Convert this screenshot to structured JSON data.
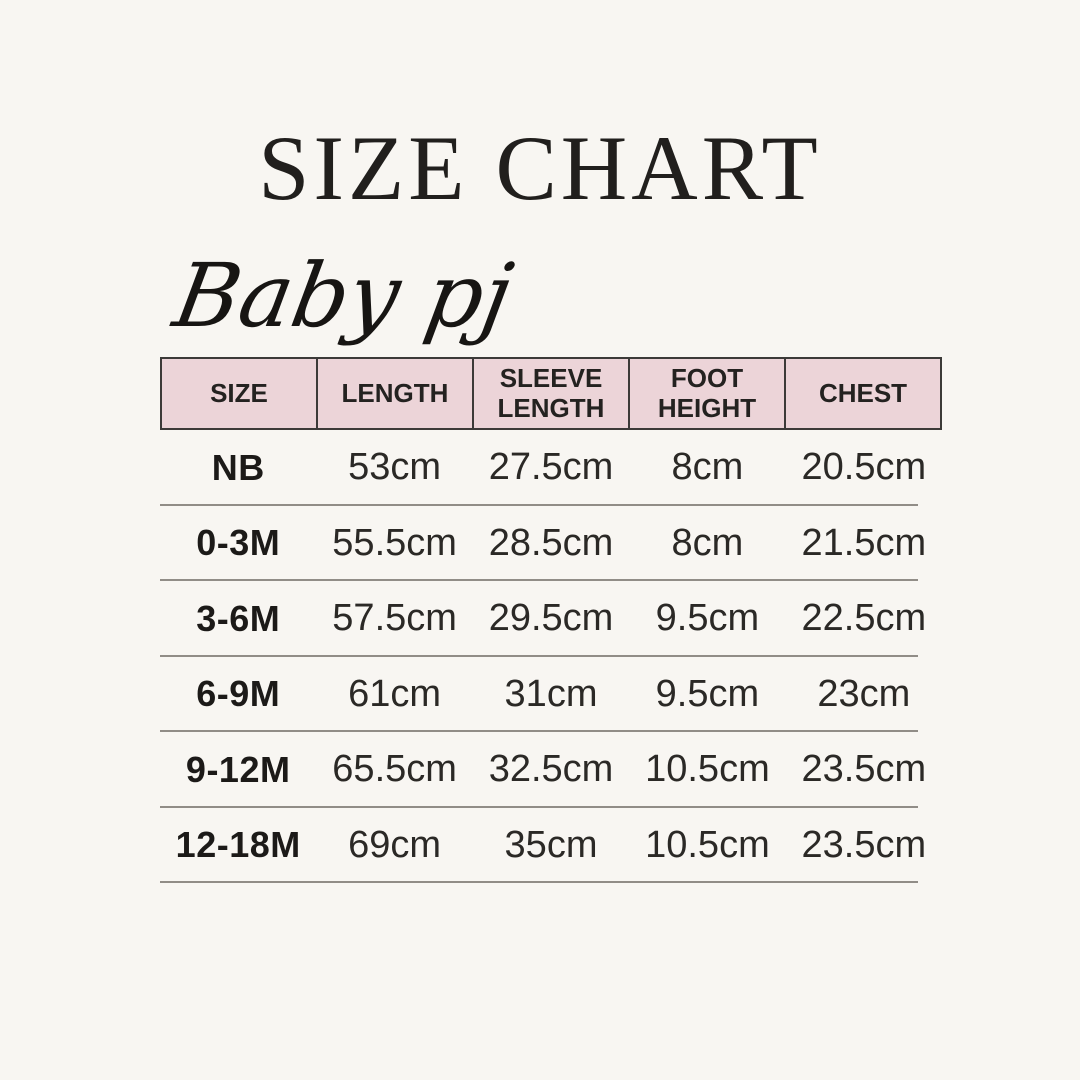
{
  "chart_data": {
    "type": "table",
    "title": "SIZE CHART",
    "subtitle": "Baby pj",
    "columns": [
      "SIZE",
      "LENGTH",
      "SLEEVE LENGTH",
      "FOOT HEIGHT",
      "CHEST"
    ],
    "rows": [
      [
        "NB",
        "53cm",
        "27.5cm",
        "8cm",
        "20.5cm"
      ],
      [
        "0-3M",
        "55.5cm",
        "28.5cm",
        "8cm",
        "21.5cm"
      ],
      [
        "3-6M",
        "57.5cm",
        "29.5cm",
        "9.5cm",
        "22.5cm"
      ],
      [
        "6-9M",
        "61cm",
        "31cm",
        "9.5cm",
        "23cm"
      ],
      [
        "9-12M",
        "65.5cm",
        "32.5cm",
        "10.5cm",
        "23.5cm"
      ],
      [
        "12-18M",
        "69cm",
        "35cm",
        "10.5cm",
        "23.5cm"
      ]
    ]
  },
  "colors": {
    "background": "#f8f6f2",
    "header_fill": "#ecd4d8",
    "header_border": "#3c3a38",
    "row_divider": "#918d87",
    "title_text": "#211f1d",
    "body_text": "#2b2926"
  }
}
